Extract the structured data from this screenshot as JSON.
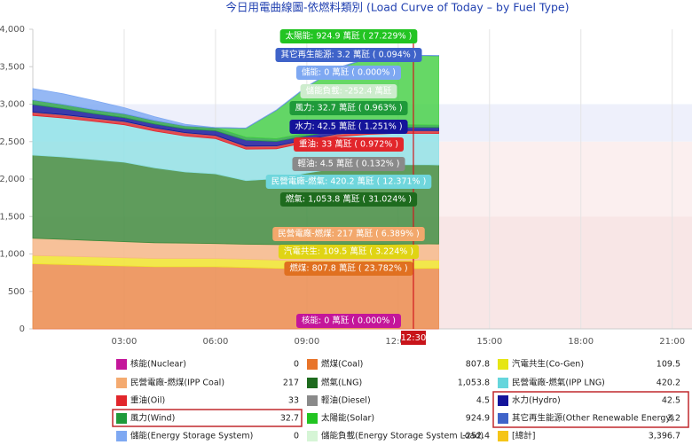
{
  "chart_data": {
    "type": "stacked_area",
    "title": "今日用電曲線圖-依燃料類別 (Load Curve of Today – by Fuel Type)",
    "xlim": [
      0,
      21.65
    ],
    "xticks": [
      {
        "value": 3,
        "label": "03:00"
      },
      {
        "value": 6,
        "label": "06:00"
      },
      {
        "value": 9,
        "label": "09:00"
      },
      {
        "value": 12,
        "label": "12:00"
      },
      {
        "value": 15,
        "label": "15:00"
      },
      {
        "value": 18,
        "label": "18:00"
      },
      {
        "value": 21,
        "label": "21:00"
      }
    ],
    "ylim": [
      0,
      4000
    ],
    "yticks": [
      0,
      500,
      {
        "value": 1000,
        "label": "1,000"
      },
      {
        "value": 1500,
        "label": "1,500"
      },
      {
        "value": 2000,
        "label": "2,000"
      },
      {
        "value": 2500,
        "label": "2,500"
      },
      {
        "value": 3000,
        "label": "3,000"
      },
      {
        "value": 3500,
        "label": "3,500"
      },
      {
        "value": 4000,
        "label": "4,000"
      }
    ],
    "x": [
      0,
      1,
      2,
      3,
      4,
      5,
      6,
      7,
      8,
      9,
      10,
      11,
      12,
      13,
      13.33
    ],
    "series": [
      {
        "name": "核能(Nuclear)",
        "color": "#c4169a",
        "values": [
          0,
          0,
          0,
          0,
          0,
          0,
          0,
          0,
          0,
          0,
          0,
          0,
          0,
          0,
          0
        ]
      },
      {
        "name": "燃煤(Coal)",
        "color": "#ec8a4a",
        "values": [
          870,
          860,
          850,
          840,
          830,
          830,
          830,
          820,
          810,
          800,
          800,
          800,
          805,
          808,
          807.8
        ]
      },
      {
        "name": "汽電共生(Co-Gen)",
        "color": "#f0e62a",
        "values": [
          110,
          110,
          110,
          110,
          110,
          110,
          110,
          110,
          110,
          110,
          110,
          110,
          110,
          110,
          109.5
        ]
      },
      {
        "name": "民營電廠-燃煤(IPP Coal)",
        "color": "#f6b887",
        "values": [
          230,
          225,
          220,
          215,
          210,
          205,
          200,
          200,
          205,
          210,
          215,
          217,
          217,
          217,
          217
        ]
      },
      {
        "name": "燃氣(LNG)",
        "color": "#3c8a3c",
        "values": [
          1110,
          1100,
          1080,
          1060,
          1000,
          950,
          930,
          850,
          880,
          960,
          1020,
          1050,
          1060,
          1055,
          1053.8
        ]
      },
      {
        "name": "民營電廠-燃氣(IPP LNG)",
        "color": "#8ee2e6",
        "values": [
          530,
          520,
          510,
          500,
          490,
          480,
          470,
          420,
          400,
          410,
          420,
          420,
          420,
          420,
          420.2
        ]
      },
      {
        "name": "重油(Oil)",
        "color": "#e2262b",
        "values": [
          40,
          40,
          40,
          40,
          40,
          40,
          40,
          35,
          33,
          33,
          33,
          33,
          33,
          33,
          33
        ]
      },
      {
        "name": "輕油(Diesel)",
        "color": "#8a8a8a",
        "values": [
          5,
          5,
          5,
          5,
          5,
          5,
          5,
          5,
          5,
          5,
          5,
          5,
          5,
          5,
          4.5
        ]
      },
      {
        "name": "水力(Hydro)",
        "color": "#14149a",
        "values": [
          100,
          80,
          60,
          50,
          50,
          50,
          60,
          80,
          60,
          50,
          45,
          42,
          42,
          42,
          42.5
        ]
      },
      {
        "name": "風力(Wind)",
        "color": "#2aa046",
        "values": [
          60,
          55,
          50,
          50,
          45,
          40,
          40,
          38,
          35,
          35,
          33,
          33,
          33,
          33,
          32.7
        ]
      },
      {
        "name": "太陽能(Solar)",
        "color": "#44d044",
        "values": [
          0,
          0,
          0,
          0,
          0,
          0,
          0,
          120,
          380,
          620,
          800,
          900,
          930,
          925,
          924.9
        ]
      },
      {
        "name": "其它再生能源(Other Renewable Energy)",
        "color": "#3f63c9",
        "values": [
          3,
          3,
          3,
          3,
          3,
          3,
          3,
          3,
          3,
          3,
          3,
          3,
          3.2,
          3.2,
          3.2
        ]
      },
      {
        "name": "儲能(Energy Storage System)",
        "color": "#7ea8f2",
        "values": [
          150,
          140,
          120,
          80,
          50,
          20,
          0,
          0,
          0,
          0,
          0,
          0,
          0,
          0,
          0
        ]
      }
    ],
    "marker": {
      "x": 12.5,
      "label": "12:30"
    },
    "tooltips": [
      {
        "text": "太陽能: 924.9 萬瓩 ( 27.229% )",
        "color": "#22c422"
      },
      {
        "text": "其它再生能源: 3.2 萬瓩 ( 0.094% )",
        "color": "#3f63c9"
      },
      {
        "text": "儲能: 0 萬瓩 ( 0.000% )",
        "color": "#7ea8f2"
      },
      {
        "text": "儲能負載: -252.4 萬瓩",
        "color": "#cdeccd"
      },
      {
        "text": "風力: 32.7 萬瓩 ( 0.963% )",
        "color": "#1f9a3a"
      },
      {
        "text": "水力: 42.5 萬瓩 ( 1.251% )",
        "color": "#14149a"
      },
      {
        "text": "重油: 33 萬瓩 ( 0.972% )",
        "color": "#e2262b"
      },
      {
        "text": "輕油: 4.5 萬瓩 ( 0.132% )",
        "color": "#8a8a8a"
      },
      {
        "text": "民營電廠-燃氣: 420.2 萬瓩 ( 12.371% )",
        "color": "#6fd6dc"
      },
      {
        "text": "燃氣: 1,053.8 萬瓩 ( 31.024% )",
        "color": "#1e6b1e"
      },
      {
        "text": "民營電廠-燃煤: 217 萬瓩 ( 6.389% )",
        "color": "#f2a86c"
      },
      {
        "text": "汽電共生: 109.5 萬瓩 ( 3.224% )",
        "color": "#e0d414"
      },
      {
        "text": "燃煤: 807.8 萬瓩 ( 23.782% )",
        "color": "#e07020"
      },
      {
        "text": "核能: 0 萬瓩 ( 0.000% )",
        "color": "#c4169a"
      }
    ],
    "legend": [
      {
        "name": "核能(Nuclear)",
        "value": "0",
        "color": "#c4169a"
      },
      {
        "name": "燃煤(Coal)",
        "value": "807.8",
        "color": "#e8742a"
      },
      {
        "name": "汽電共生(Co-Gen)",
        "value": "109.5",
        "color": "#e6e614"
      },
      {
        "name": "民營電廠-燃煤(IPP Coal)",
        "value": "217",
        "color": "#f4aa70"
      },
      {
        "name": "燃氣(LNG)",
        "value": "1,053.8",
        "color": "#1e6b1e"
      },
      {
        "name": "民營電廠-燃氣(IPP LNG)",
        "value": "420.2",
        "color": "#66d6dc"
      },
      {
        "name": "重油(Oil)",
        "value": "33",
        "color": "#e2262b"
      },
      {
        "name": "輕油(Diesel)",
        "value": "4.5",
        "color": "#8a8a8a"
      },
      {
        "name": "水力(Hydro)",
        "value": "42.5",
        "color": "#14149a"
      },
      {
        "name": "風力(Wind)",
        "value": "32.7",
        "color": "#1f9a3a"
      },
      {
        "name": "太陽能(Solar)",
        "value": "924.9",
        "color": "#22c422"
      },
      {
        "name": "其它再生能源(Other Renewable Energy)",
        "value": "3.2",
        "color": "#3f63c9"
      },
      {
        "name": "儲能(Energy Storage System)",
        "value": "0",
        "color": "#7ea8f2"
      },
      {
        "name": "儲能負載(Energy Storage System Load)",
        "value": "-252.4",
        "color": "#d6f5d6"
      },
      {
        "name": "[總計]",
        "value": "3,396.7",
        "color": "#f5c518"
      }
    ]
  }
}
